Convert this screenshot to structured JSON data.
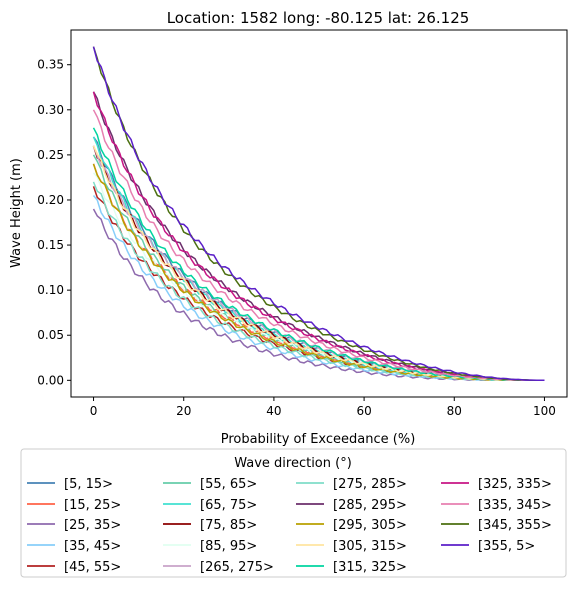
{
  "chart_data": {
    "type": "line",
    "title": "Location: 1582 long: -80.125 lat: 26.125",
    "xlabel": "Probability of Exceedance (%)",
    "ylabel": "Wave Height (m)",
    "xlim": [
      -5,
      105
    ],
    "ylim": [
      -0.0185,
      0.3885
    ],
    "xticks": [
      0,
      20,
      40,
      60,
      80,
      100
    ],
    "xtick_labels": [
      "0",
      "20",
      "40",
      "60",
      "80",
      "100"
    ],
    "yticks": [
      0.0,
      0.05,
      0.1,
      0.15,
      0.2,
      0.25,
      0.3,
      0.35
    ],
    "ytick_labels": [
      "0.00",
      "0.05",
      "0.10",
      "0.15",
      "0.20",
      "0.25",
      "0.30",
      "0.35"
    ],
    "grid": false,
    "legend": {
      "title": "Wave direction (°)",
      "placement": "below",
      "columns": 4
    },
    "series": [
      {
        "name": "[5, 15>",
        "color": "#4682B4",
        "y0": 0.27,
        "k": 2.3
      },
      {
        "name": "[15, 25>",
        "color": "#FF6347",
        "y0": 0.24,
        "k": 2.4
      },
      {
        "name": "[25, 35>",
        "color": "#8E6AAE",
        "y0": 0.19,
        "k": 2.8
      },
      {
        "name": "[35, 45>",
        "color": "#87CEFA",
        "y0": 0.205,
        "k": 2.6
      },
      {
        "name": "[45, 55>",
        "color": "#B22222",
        "y0": 0.215,
        "k": 2.4
      },
      {
        "name": "[55, 65>",
        "color": "#66CDAA",
        "y0": 0.25,
        "k": 2.5
      },
      {
        "name": "[65, 75>",
        "color": "#40E0D0",
        "y0": 0.27,
        "k": 2.45
      },
      {
        "name": "[75, 85>",
        "color": "#8B0000",
        "y0": 0.26,
        "k": 2.35
      },
      {
        "name": "[85, 95>",
        "color": "#E0FFF0",
        "y0": 0.23,
        "k": 2.3
      },
      {
        "name": "[265, 275>",
        "color": "#C8A2C8",
        "y0": 0.26,
        "k": 2.2
      },
      {
        "name": "[275, 285>",
        "color": "#7FDDC8",
        "y0": 0.22,
        "k": 2.55
      },
      {
        "name": "[285, 295>",
        "color": "#6B2E6B",
        "y0": 0.32,
        "k": 2.1
      },
      {
        "name": "[295, 305>",
        "color": "#B8A000",
        "y0": 0.24,
        "k": 2.5
      },
      {
        "name": "[305, 315>",
        "color": "#FFE4A0",
        "y0": 0.26,
        "k": 2.4
      },
      {
        "name": "[315, 325>",
        "color": "#00D4A0",
        "y0": 0.28,
        "k": 2.3
      },
      {
        "name": "[325, 335>",
        "color": "#C71585",
        "y0": 0.32,
        "k": 2.15
      },
      {
        "name": "[335, 345>",
        "color": "#E77FB0",
        "y0": 0.3,
        "k": 2.2
      },
      {
        "name": "[345, 355>",
        "color": "#4B6F10",
        "y0": 0.37,
        "k": 2.1
      },
      {
        "name": "[355, 5>",
        "color": "#5B1FC8",
        "y0": 0.37,
        "k": 2.0
      }
    ]
  }
}
